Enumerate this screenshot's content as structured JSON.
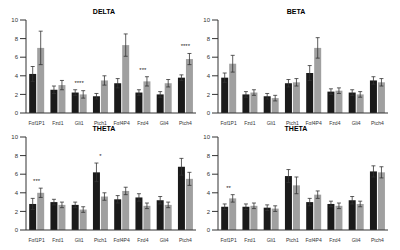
{
  "chart_data": [
    {
      "type": "bar",
      "title": "DELTA",
      "categories": [
        "Fgf1P1",
        "Fzd1",
        "Gli1",
        "Ptch1",
        "Fgf4P4",
        "Fzd4",
        "Gli4",
        "Ptch4"
      ],
      "series": [
        {
          "color": "#1a1a1a",
          "values": [
            4.2,
            2.5,
            2.2,
            1.8,
            3.2,
            2.2,
            2.0,
            3.8
          ],
          "errors": [
            0.8,
            0.4,
            0.3,
            0.3,
            0.5,
            0.3,
            0.3,
            0.3
          ]
        },
        {
          "color": "#a0a0a0",
          "values": [
            7.0,
            3.0,
            2.0,
            3.5,
            7.3,
            3.4,
            3.2,
            5.8
          ],
          "errors": [
            1.8,
            0.5,
            0.4,
            0.5,
            1.2,
            0.5,
            0.4,
            0.6
          ]
        }
      ],
      "ylim": [
        0,
        10
      ],
      "yticks": [
        0,
        2,
        4,
        6,
        8,
        10
      ],
      "annotations": [
        {
          "category": "Gli1",
          "text": "****"
        },
        {
          "category": "Fzd4",
          "text": "***"
        },
        {
          "category": "Ptch4",
          "text": "****"
        }
      ]
    },
    {
      "type": "bar",
      "title": "BETA",
      "categories": [
        "Fgf1P1",
        "Fzd1",
        "Gli1",
        "Ptch1",
        "Fgf4P4",
        "Fzd4",
        "Gli4",
        "Ptch4"
      ],
      "series": [
        {
          "color": "#1a1a1a",
          "values": [
            3.8,
            2.0,
            1.8,
            3.2,
            4.3,
            2.3,
            2.2,
            3.5
          ],
          "errors": [
            0.5,
            0.3,
            0.3,
            0.4,
            0.8,
            0.3,
            0.3,
            0.4
          ]
        },
        {
          "color": "#a0a0a0",
          "values": [
            5.3,
            2.2,
            1.6,
            3.3,
            7.0,
            2.4,
            2.0,
            3.3
          ],
          "errors": [
            0.9,
            0.3,
            0.3,
            0.4,
            1.1,
            0.3,
            0.3,
            0.4
          ]
        }
      ],
      "ylim": [
        0,
        10
      ],
      "yticks": [
        0,
        2,
        4,
        6,
        8,
        10
      ],
      "annotations": []
    },
    {
      "type": "bar",
      "title": "THETA",
      "categories": [
        "Fgf1P1",
        "Fzd1",
        "Gli1",
        "Ptch1",
        "Fgf4P4",
        "Fzd4",
        "Gli4",
        "Ptch4"
      ],
      "series": [
        {
          "color": "#1a1a1a",
          "values": [
            2.8,
            3.0,
            2.7,
            6.2,
            3.3,
            3.5,
            3.2,
            6.8
          ],
          "errors": [
            0.6,
            0.3,
            0.3,
            1.0,
            0.4,
            0.4,
            0.4,
            0.9
          ]
        },
        {
          "color": "#a0a0a0",
          "values": [
            4.0,
            2.7,
            2.2,
            3.6,
            4.2,
            2.6,
            2.7,
            5.5
          ],
          "errors": [
            0.5,
            0.3,
            0.3,
            0.4,
            0.4,
            0.3,
            0.3,
            0.7
          ]
        }
      ],
      "ylim": [
        0,
        10
      ],
      "yticks": [
        0,
        2,
        4,
        6,
        8,
        10
      ],
      "annotations": [
        {
          "category": "Fgf1P1",
          "text": "***"
        },
        {
          "category": "Ptch1",
          "text": "*"
        }
      ]
    },
    {
      "type": "bar",
      "title": "THETA",
      "categories": [
        "Fgf1P1",
        "Fzd1",
        "Gli1",
        "Ptch1",
        "Fgf4P4",
        "Fzd4",
        "Gli4",
        "Ptch4"
      ],
      "series": [
        {
          "color": "#1a1a1a",
          "values": [
            2.5,
            2.5,
            2.4,
            5.8,
            3.0,
            2.8,
            3.2,
            6.3
          ],
          "errors": [
            0.3,
            0.3,
            0.3,
            0.7,
            0.4,
            0.3,
            0.4,
            0.6
          ]
        },
        {
          "color": "#a0a0a0",
          "values": [
            3.4,
            2.6,
            2.3,
            4.8,
            3.8,
            2.6,
            2.8,
            6.2
          ],
          "errors": [
            0.4,
            0.3,
            0.3,
            0.9,
            0.4,
            0.3,
            0.3,
            0.6
          ]
        }
      ],
      "ylim": [
        0,
        10
      ],
      "yticks": [
        0,
        2,
        4,
        6,
        8,
        10
      ],
      "annotations": [
        {
          "category": "Fgf1P1",
          "text": "**"
        }
      ]
    }
  ]
}
